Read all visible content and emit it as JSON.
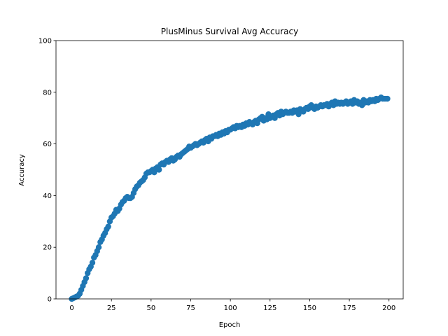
{
  "chart_data": {
    "type": "scatter",
    "title": "PlusMinus Survival Avg Accuracy",
    "x_label": "Epoch",
    "y_label": "Accuracy",
    "color": "#1f77b4",
    "xlim": [
      -9.95,
      208.95
    ],
    "ylim": [
      0,
      100
    ],
    "xticks": [
      0,
      25,
      50,
      75,
      100,
      125,
      150,
      175,
      200
    ],
    "yticks": [
      0,
      20,
      40,
      60,
      80,
      100
    ],
    "x": [
      0,
      1,
      2,
      3,
      4,
      5,
      6,
      7,
      8,
      9,
      10,
      11,
      12,
      13,
      14,
      15,
      16,
      17,
      18,
      19,
      20,
      21,
      22,
      23,
      24,
      25,
      26,
      27,
      28,
      29,
      30,
      31,
      32,
      33,
      34,
      35,
      36,
      37,
      38,
      39,
      40,
      41,
      42,
      43,
      44,
      45,
      46,
      47,
      48,
      49,
      50,
      51,
      52,
      53,
      54,
      55,
      56,
      57,
      58,
      59,
      60,
      61,
      62,
      63,
      64,
      65,
      66,
      67,
      68,
      69,
      70,
      71,
      72,
      73,
      74,
      75,
      76,
      77,
      78,
      79,
      80,
      81,
      82,
      83,
      84,
      85,
      86,
      87,
      88,
      89,
      90,
      91,
      92,
      93,
      94,
      95,
      96,
      97,
      98,
      99,
      100,
      101,
      102,
      103,
      104,
      105,
      106,
      107,
      108,
      109,
      110,
      111,
      112,
      113,
      114,
      115,
      116,
      117,
      118,
      119,
      120,
      121,
      122,
      123,
      124,
      125,
      126,
      127,
      128,
      129,
      130,
      131,
      132,
      133,
      134,
      135,
      136,
      137,
      138,
      139,
      140,
      141,
      142,
      143,
      144,
      145,
      146,
      147,
      148,
      149,
      150,
      151,
      152,
      153,
      154,
      155,
      156,
      157,
      158,
      159,
      160,
      161,
      162,
      163,
      164,
      165,
      166,
      167,
      168,
      169,
      170,
      171,
      172,
      173,
      174,
      175,
      176,
      177,
      178,
      179,
      180,
      181,
      182,
      183,
      184,
      185,
      186,
      187,
      188,
      189,
      190,
      191,
      192,
      193,
      194,
      195,
      196,
      197,
      198,
      199
    ],
    "values": [
      0,
      0.3,
      0.6,
      0.9,
      1.2,
      2,
      3.5,
      5,
      6.5,
      8,
      10,
      11.5,
      12.5,
      14,
      16,
      17,
      18.5,
      20,
      22,
      23,
      24.5,
      25.5,
      27,
      28,
      30,
      31.5,
      32,
      33,
      34.5,
      34,
      35,
      36.5,
      37.5,
      38,
      39,
      39.5,
      39,
      39,
      39.5,
      41,
      42.5,
      43.5,
      44,
      45,
      45.5,
      46,
      47,
      48.5,
      49,
      49,
      49.5,
      50,
      49,
      50.5,
      51,
      50,
      52,
      52.5,
      52,
      53,
      53.5,
      53,
      54,
      54.5,
      53.5,
      54,
      55,
      55.5,
      55,
      56,
      56.5,
      57,
      57.5,
      58,
      59,
      58.5,
      59,
      59.5,
      60,
      59.5,
      60,
      60.5,
      61,
      60.5,
      61.5,
      62,
      61,
      62.5,
      62,
      63,
      63,
      63.5,
      63,
      64,
      63.5,
      64.5,
      64,
      65,
      64.5,
      65.5,
      65.5,
      66,
      66.5,
      66,
      67,
      66.5,
      67,
      66.5,
      67.5,
      67,
      68,
      67.5,
      68.5,
      68,
      67.5,
      68.5,
      69,
      68,
      69.5,
      70,
      70.5,
      69,
      70,
      69.5,
      71.5,
      70,
      70.5,
      71,
      70,
      71.5,
      72,
      71,
      72.5,
      71.5,
      72,
      72.5,
      72,
      72,
      72.5,
      72,
      73,
      72.5,
      73,
      71.5,
      73.5,
      73,
      72.5,
      73.5,
      74,
      73.5,
      74.5,
      75,
      74,
      73.5,
      74.5,
      74,
      74.5,
      75,
      74.5,
      75,
      75,
      75.5,
      74.5,
      75.5,
      76,
      75,
      76.5,
      75.5,
      76,
      75.5,
      76,
      75.5,
      76,
      76.5,
      75.5,
      76,
      76.5,
      75.5,
      77,
      76,
      76.5,
      75.5,
      76,
      75,
      77,
      76,
      76.5,
      76,
      77,
      76.5,
      77,
      76.5,
      77.5,
      77,
      77.5,
      78,
      77.5,
      77.5,
      77.5,
      77.5
    ]
  }
}
